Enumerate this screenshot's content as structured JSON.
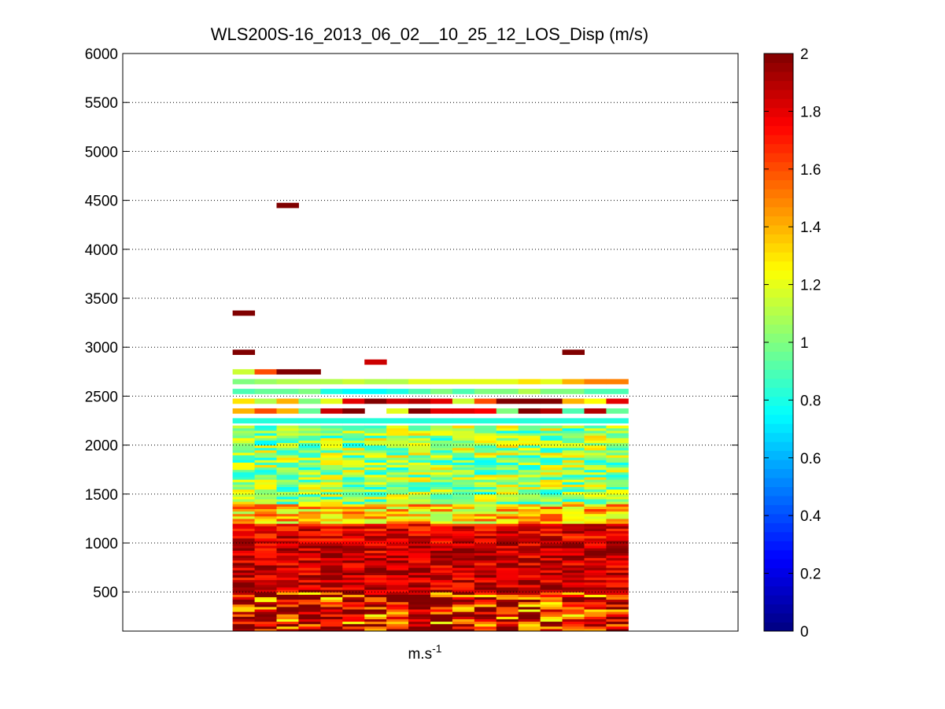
{
  "chart_data": {
    "type": "heatmap",
    "title": "WLS200S-16_2013_06_02__10_25_12_LOS_Disp (m/s)",
    "xlabel_base": "m.s",
    "xlabel_sup": "-1",
    "ylim": [
      100,
      6000
    ],
    "yticks": [
      500,
      1000,
      1500,
      2000,
      2500,
      3000,
      3500,
      4000,
      4500,
      5000,
      5500,
      6000
    ],
    "grid": true,
    "colormap": "jet",
    "color_range": [
      0,
      2
    ],
    "colorbar_ticks": [
      0,
      0.2,
      0.4,
      0.6,
      0.8,
      1,
      1.2,
      1.4,
      1.6,
      1.8,
      2
    ],
    "colorbar_labels": [
      "0",
      "0.2",
      "0.4",
      "0.6",
      "0.8",
      "1",
      "1.2",
      "1.4",
      "1.6",
      "1.8",
      "2"
    ],
    "x_range": [
      0,
      28
    ],
    "columns": 18,
    "column_start": 5,
    "row_height": 50,
    "band_rows": [
      {
        "y": 2250,
        "values": [
          0.82,
          0.82,
          0.82,
          0.82,
          0.82,
          0.82,
          0.82,
          0.82,
          0.82,
          0.82,
          0.82,
          0.82,
          0.82,
          0.82,
          0.82,
          0.82,
          0.82,
          0.82
        ]
      },
      {
        "y": 2350,
        "values": [
          1.4,
          1.6,
          1.4,
          0.95,
          1.85,
          2.0,
          null,
          1.2,
          2.0,
          1.8,
          1.8,
          1.75,
          1.0,
          2.0,
          1.9,
          0.9,
          1.9,
          0.95
        ]
      },
      {
        "y": 2450,
        "values": [
          1.3,
          1.1,
          1.4,
          1.0,
          1.2,
          1.8,
          2.0,
          1.85,
          1.9,
          1.8,
          1.15,
          1.6,
          2.0,
          2.0,
          2.0,
          1.4,
          1.25,
          1.8
        ]
      },
      {
        "y": 2550,
        "values": [
          0.9,
          0.95,
          0.95,
          1.0,
          0.8,
          0.75,
          0.75,
          0.8,
          0.9,
          1.0,
          0.9,
          1.0,
          1.0,
          1.1,
          1.0,
          1.0,
          0.9,
          0.9
        ]
      },
      {
        "y": 2650,
        "values": [
          1.0,
          1.05,
          1.1,
          1.1,
          1.1,
          1.15,
          1.1,
          1.1,
          1.2,
          1.2,
          1.2,
          1.2,
          1.2,
          1.3,
          1.2,
          1.4,
          1.5,
          1.5
        ]
      }
    ],
    "isolated_cells": [
      {
        "col": 0,
        "y": 2750,
        "value": 1.15
      },
      {
        "col": 1,
        "y": 2750,
        "value": 1.6
      },
      {
        "col": 2,
        "y": 2750,
        "value": 2.0
      },
      {
        "col": 3,
        "y": 2750,
        "value": 2.0
      },
      {
        "col": 0,
        "y": 2950,
        "value": 2.0
      },
      {
        "col": 6,
        "y": 2850,
        "value": 1.85
      },
      {
        "col": 15,
        "y": 2950,
        "value": 2.0
      },
      {
        "col": 0,
        "y": 3350,
        "value": 2.0
      },
      {
        "col": 2,
        "y": 4450,
        "value": 2.0
      }
    ],
    "noise_profile": {
      "y_start": 100,
      "y_end": 2200,
      "row_height": 50,
      "levels": [
        {
          "y_max": 500,
          "base": 1.75,
          "spread": 0.55
        },
        {
          "y_max": 1000,
          "base": 1.85,
          "spread": 0.2
        },
        {
          "y_max": 1200,
          "base": 1.8,
          "spread": 0.2
        },
        {
          "y_max": 1400,
          "base": 1.35,
          "spread": 0.3
        },
        {
          "y_max": 2200,
          "base": 1.05,
          "spread": 0.3
        }
      ]
    }
  }
}
